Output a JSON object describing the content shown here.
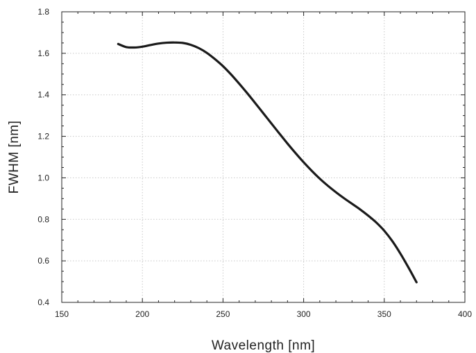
{
  "chart_data": {
    "type": "line",
    "title": "",
    "xlabel": "Wavelength [nm]",
    "ylabel": "FWHM [nm]",
    "xlim": [
      150,
      400
    ],
    "ylim": [
      0.4,
      1.8
    ],
    "x_ticks": [
      150,
      200,
      250,
      300,
      350,
      400
    ],
    "x_tick_labels": [
      "150",
      "200",
      "250",
      "300",
      "350",
      "400"
    ],
    "y_ticks": [
      0.4,
      0.6,
      0.8,
      1.0,
      1.2,
      1.4,
      1.6,
      1.8
    ],
    "y_tick_labels": [
      "0.4",
      "0.6",
      "0.8",
      "1.0",
      "1.2",
      "1.4",
      "1.6",
      "1.8"
    ],
    "x_minor_step": 10,
    "y_minor_step": 0.05,
    "grid": true,
    "legend": "none",
    "colors": {
      "series": "#1a1a1a",
      "grid": "#c8c8c8",
      "axis": "#222222"
    },
    "series": [
      {
        "x": [
          185,
          190,
          195,
          200,
          205,
          210,
          215,
          220,
          225,
          230,
          235,
          240,
          245,
          250,
          255,
          260,
          265,
          270,
          275,
          280,
          285,
          290,
          295,
          300,
          305,
          310,
          315,
          320,
          325,
          330,
          335,
          340,
          345,
          350,
          355,
          360,
          365,
          370
        ],
        "y": [
          1.645,
          1.63,
          1.628,
          1.632,
          1.64,
          1.647,
          1.651,
          1.652,
          1.65,
          1.641,
          1.625,
          1.602,
          1.572,
          1.538,
          1.498,
          1.454,
          1.408,
          1.36,
          1.311,
          1.262,
          1.213,
          1.165,
          1.119,
          1.075,
          1.034,
          0.996,
          0.962,
          0.931,
          0.902,
          0.875,
          0.848,
          0.818,
          0.785,
          0.745,
          0.695,
          0.635,
          0.568,
          0.497
        ]
      }
    ]
  }
}
